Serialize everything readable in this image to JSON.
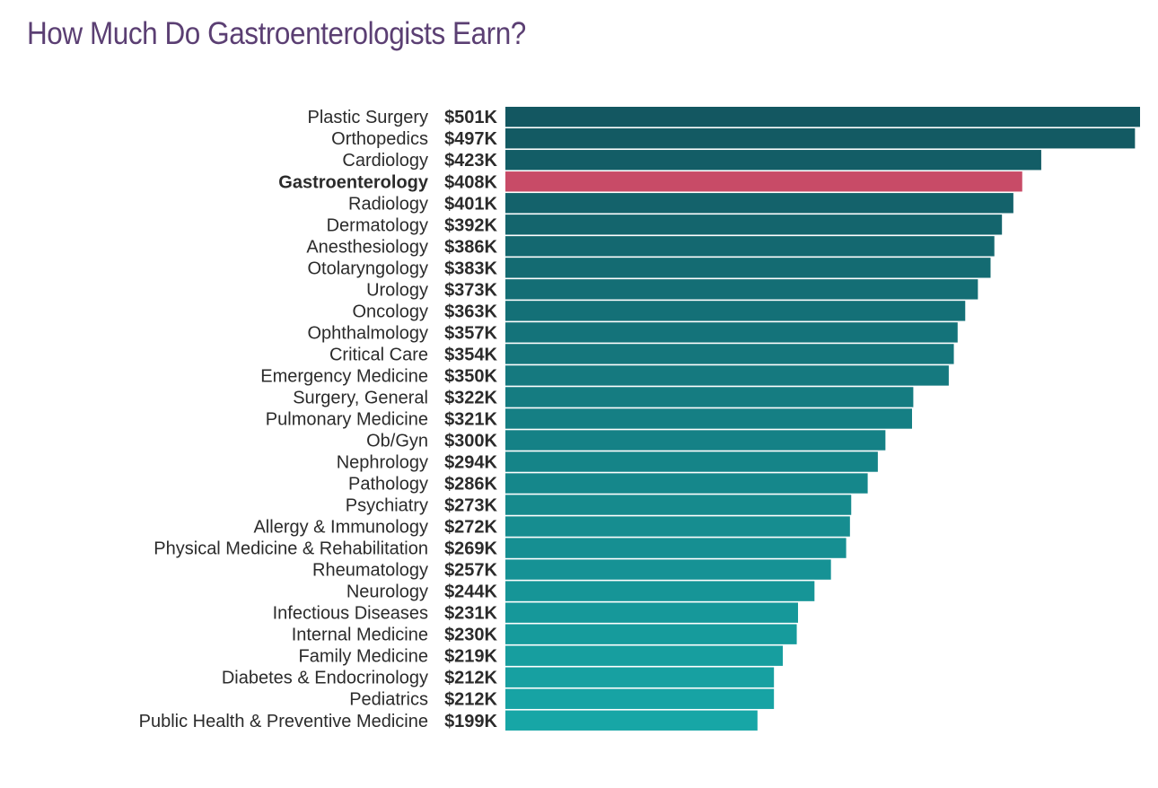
{
  "colors": {
    "title": "#5b3f73",
    "highlight": "#c84b67",
    "bar_top": "#135761",
    "bar_bottom": "#17a6a6",
    "text": "#2b2b2b"
  },
  "chart_data": {
    "type": "bar",
    "orientation": "horizontal",
    "title": "How Much Do Gastroenterologists Earn?",
    "xlabel": "",
    "ylabel": "",
    "unit_prefix": "$",
    "unit_suffix": "K",
    "grid": false,
    "highlight": "Gastroenterology",
    "xlim": [
      0,
      501
    ],
    "categories": [
      "Plastic Surgery",
      "Orthopedics",
      "Cardiology",
      "Gastroenterology",
      "Radiology",
      "Dermatology",
      "Anesthesiology",
      "Otolaryngology",
      "Urology",
      "Oncology",
      "Ophthalmology",
      "Critical Care",
      "Emergency Medicine",
      "Surgery, General",
      "Pulmonary Medicine",
      "Ob/Gyn",
      "Nephrology",
      "Pathology",
      "Psychiatry",
      "Allergy & Immunology",
      "Physical Medicine & Rehabilitation",
      "Rheumatology",
      "Neurology",
      "Infectious Diseases",
      "Internal Medicine",
      "Family Medicine",
      "Diabetes & Endocrinology",
      "Pediatrics",
      "Public Health & Preventive Medicine"
    ],
    "values": [
      501,
      497,
      423,
      408,
      401,
      392,
      386,
      383,
      373,
      363,
      357,
      354,
      350,
      322,
      321,
      300,
      294,
      286,
      273,
      272,
      269,
      257,
      244,
      231,
      230,
      219,
      212,
      212,
      199
    ],
    "value_labels": [
      "$501K",
      "$497K",
      "$423K",
      "$408K",
      "$401K",
      "$392K",
      "$386K",
      "$383K",
      "$373K",
      "$363K",
      "$357K",
      "$354K",
      "$350K",
      "$322K",
      "$321K",
      "$300K",
      "$294K",
      "$286K",
      "$273K",
      "$272K",
      "$269K",
      "$257K",
      "$244K",
      "$231K",
      "$230K",
      "$219K",
      "$212K",
      "$212K",
      "$199K"
    ]
  }
}
